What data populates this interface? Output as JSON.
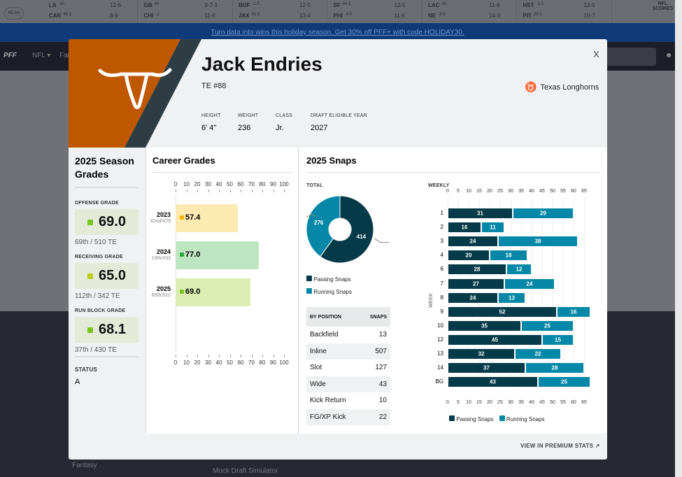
{
  "scoreboard": {
    "leagues": [
      "NCAA"
    ],
    "games": [
      {
        "t1": "LA",
        "l1": "-10",
        "t2": "CAR",
        "l2": "46.5",
        "r1": "12-5",
        "r2": "8-9"
      },
      {
        "t1": "GB",
        "l1": "46",
        "t2": "CHI",
        "l2": "-1",
        "r1": "9-7-1",
        "r2": "11-6"
      },
      {
        "t1": "BUF",
        "l1": "-1.5",
        "t2": "JAX",
        "l2": "51.5",
        "r1": "12-5",
        "r2": "13-4"
      },
      {
        "t1": "SF",
        "l1": "44.5",
        "t2": "PHI",
        "l2": "-4.5",
        "r1": "12-5",
        "r2": "11-6"
      },
      {
        "t1": "LAC",
        "l1": "46",
        "t2": "NE",
        "l2": "-3.5",
        "r1": "11-6",
        "r2": "14-3"
      },
      {
        "t1": "HST",
        "l1": "-3.5",
        "t2": "PIT",
        "l2": "39.5",
        "r1": "12-5",
        "r2": "10-7"
      }
    ],
    "nfl_scores": "NFL SCORES"
  },
  "banner": "Turn data into wins this holiday season. Get 30% off PFF+ with code HOLIDAY30.",
  "nav": {
    "logo": "PFF",
    "items": [
      "NFL ▾",
      "Fan"
    ]
  },
  "footer": {
    "links": [
      "Fantasy",
      "Mock Draft Simulator"
    ]
  },
  "player": {
    "name": "Jack Endries",
    "position": "TE #88",
    "team": "Texas Longhorns",
    "team_color": "#bf5700",
    "bio": [
      {
        "label": "HEIGHT",
        "value": "6' 4\""
      },
      {
        "label": "WEIGHT",
        "value": "236"
      },
      {
        "label": "CLASS",
        "value": "Jr."
      },
      {
        "label": "DRAFT ELIGIBLE YEAR",
        "value": "2027"
      }
    ]
  },
  "close": "X",
  "season": {
    "title": "2025 Season Grades",
    "grades": [
      {
        "label": "OFFENSE GRADE",
        "value": "69.0",
        "rank": "69th / 510 TE",
        "color": "#7cc41f"
      },
      {
        "label": "RECEIVING GRADE",
        "value": "65.0",
        "rank": "112th / 342 TE",
        "color": "#b9cf1a"
      },
      {
        "label": "RUN BLOCK GRADE",
        "value": "68.1",
        "rank": "37th / 430 TE",
        "color": "#7cc41f"
      }
    ],
    "status_label": "STATUS",
    "status": "A"
  },
  "chart_data": [
    {
      "type": "bar",
      "title": "Career Grades",
      "orientation": "horizontal",
      "xlim": [
        0,
        100
      ],
      "ticks": [
        0,
        10,
        20,
        30,
        40,
        50,
        60,
        70,
        80,
        90,
        100
      ],
      "categories": [
        "2023",
        "2024",
        "2025"
      ],
      "ranks": [
        "42nd/479",
        "19th/433",
        "69th/510"
      ],
      "values": [
        57.4,
        77.0,
        69.0
      ],
      "colors": [
        "#fdeab3",
        "#bde5c0",
        "#dcedb2"
      ],
      "dot_colors": [
        "#f7b500",
        "#2ca836",
        "#7cc41f"
      ]
    },
    {
      "type": "pie",
      "title": "2025 Snaps",
      "subtitle": "TOTAL",
      "donut": true,
      "series": [
        {
          "name": "Passing Snaps",
          "value": 414,
          "color": "#053a49"
        },
        {
          "name": "Running Snaps",
          "value": 276,
          "color": "#0588a7"
        }
      ]
    },
    {
      "type": "bar",
      "subtitle": "WEEKLY",
      "orientation": "horizontal",
      "stacked": true,
      "ylabel": "WEEK",
      "xlim": [
        0,
        68
      ],
      "ticks": [
        0,
        5,
        10,
        15,
        20,
        25,
        30,
        35,
        40,
        45,
        50,
        55,
        60,
        65
      ],
      "categories": [
        "1",
        "2",
        "3",
        "4",
        "6",
        "7",
        "8",
        "9",
        "10",
        "12",
        "13",
        "14",
        "BG"
      ],
      "series": [
        {
          "name": "Passing Snaps",
          "color": "#053a49",
          "values": [
            31,
            16,
            24,
            20,
            28,
            27,
            24,
            52,
            35,
            45,
            32,
            37,
            43
          ]
        },
        {
          "name": "Running Snaps",
          "color": "#0588a7",
          "values": [
            29,
            11,
            38,
            18,
            12,
            24,
            13,
            16,
            25,
            15,
            22,
            28,
            25
          ]
        }
      ]
    }
  ],
  "by_position": {
    "headers": [
      "BY POSITION",
      "SNAPS"
    ],
    "rows": [
      [
        "Backfield",
        "13"
      ],
      [
        "Inline",
        "507"
      ],
      [
        "Slot",
        "127"
      ],
      [
        "Wide",
        "43"
      ],
      [
        "Kick Return",
        "10"
      ],
      [
        "FG/XP Kick",
        "22"
      ]
    ]
  },
  "premium_link": "VIEW IN PREMIUM STATS ↗"
}
